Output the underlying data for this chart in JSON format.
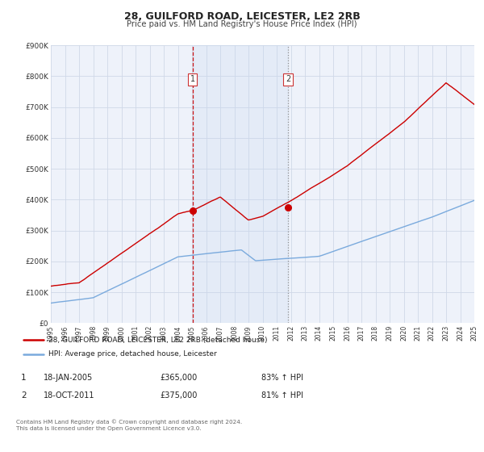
{
  "title": "28, GUILFORD ROAD, LEICESTER, LE2 2RB",
  "subtitle": "Price paid vs. HM Land Registry's House Price Index (HPI)",
  "background_color": "#ffffff",
  "plot_background": "#eef2fa",
  "grid_color": "#d0d8e8",
  "red_line_color": "#cc0000",
  "blue_line_color": "#7aaadd",
  "sale1_date_num": 2005.05,
  "sale1_price": 365000,
  "sale2_date_num": 2011.8,
  "sale2_price": 375000,
  "legend1_text": "28, GUILFORD ROAD, LEICESTER, LE2 2RB (detached house)",
  "legend2_text": "HPI: Average price, detached house, Leicester",
  "table_row1": [
    "1",
    "18-JAN-2005",
    "£365,000",
    "83% ↑ HPI"
  ],
  "table_row2": [
    "2",
    "18-OCT-2011",
    "£375,000",
    "81% ↑ HPI"
  ],
  "footnote": "Contains HM Land Registry data © Crown copyright and database right 2024.\nThis data is licensed under the Open Government Licence v3.0.",
  "ylim": [
    0,
    900000
  ],
  "xlim": [
    1995,
    2025
  ],
  "yticks": [
    0,
    100000,
    200000,
    300000,
    400000,
    500000,
    600000,
    700000,
    800000,
    900000
  ],
  "ytick_labels": [
    "£0",
    "£100K",
    "£200K",
    "£300K",
    "£400K",
    "£500K",
    "£600K",
    "£700K",
    "£800K",
    "£900K"
  ],
  "xticks": [
    1995,
    1996,
    1997,
    1998,
    1999,
    2000,
    2001,
    2002,
    2003,
    2004,
    2005,
    2006,
    2007,
    2008,
    2009,
    2010,
    2011,
    2012,
    2013,
    2014,
    2015,
    2016,
    2017,
    2018,
    2019,
    2020,
    2021,
    2022,
    2023,
    2024,
    2025
  ]
}
